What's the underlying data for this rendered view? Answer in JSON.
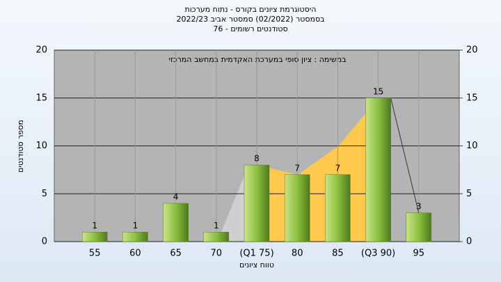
{
  "chart_data": {
    "type": "bar",
    "title": "היסטוגרמת ציונים בקורס - נתוח מערכות",
    "subtitle": "בסמסטר  (02/2022)  סמסטר אביב 2022/23",
    "subtitle2": "סטודנטים רשומים - 76",
    "annotation": "במשימה : ציון סופי במערכת האקדמית במחשב המרכזי",
    "y_label": "מספר סטודנטים",
    "x_label": "טווח ציונים",
    "categories": [
      "55",
      "60",
      "65",
      "70",
      "(Q1 75)",
      "80",
      "85",
      "(Q3 90)",
      "95"
    ],
    "values": [
      1,
      1,
      4,
      1,
      8,
      7,
      7,
      15,
      3
    ],
    "color": "#8cbf3f",
    "ylim": [
      0,
      20
    ],
    "yticks": [
      0,
      5,
      10,
      15,
      20
    ],
    "y2lim": [
      0,
      20
    ],
    "y2ticks": [
      0,
      5,
      10,
      15,
      20
    ],
    "grid": true
  }
}
